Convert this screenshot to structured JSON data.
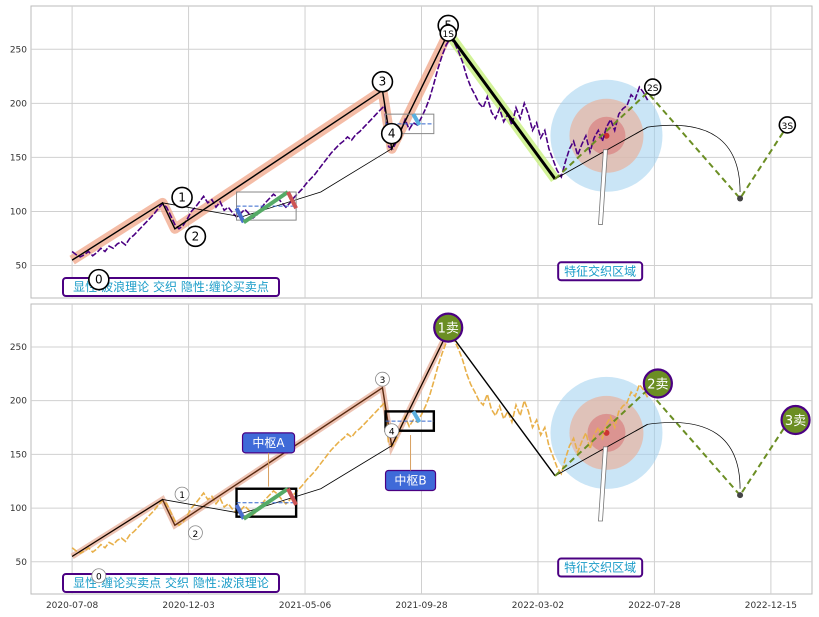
{
  "chart_data": [
    {
      "type": "line",
      "panel": "top",
      "ylim": [
        20,
        290
      ],
      "yticks": [
        50,
        100,
        150,
        200,
        250
      ],
      "x_dates": [
        "2020-07-08",
        "2020-12-03",
        "2021-05-06",
        "2021-09-28",
        "2022-03-02",
        "2022-07-28",
        "2022-12-15"
      ],
      "xlim": [
        0,
        760
      ],
      "legend_text": "显性:波浪理论 交织 隐性:缠论买卖点",
      "annotation_text": "特征交织区域",
      "wave_labels": [
        {
          "label": "0",
          "x": 66,
          "y": 37
        },
        {
          "label": "1",
          "x": 147,
          "y": 113
        },
        {
          "label": "2",
          "x": 160,
          "y": 77
        },
        {
          "label": "3",
          "x": 342,
          "y": 220
        },
        {
          "label": "4",
          "x": 351,
          "y": 172
        },
        {
          "label": "5",
          "x": 406,
          "y": 272
        },
        {
          "label": "1S",
          "x": 406,
          "y": 265
        },
        {
          "label": "2S",
          "x": 605,
          "y": 215
        },
        {
          "label": "3S",
          "x": 736,
          "y": 180
        }
      ],
      "price_path": [
        [
          40,
          63
        ],
        [
          44,
          60
        ],
        [
          48,
          58
        ],
        [
          52,
          60
        ],
        [
          56,
          63
        ],
        [
          60,
          59
        ],
        [
          64,
          62
        ],
        [
          68,
          66
        ],
        [
          72,
          63
        ],
        [
          76,
          68
        ],
        [
          80,
          66
        ],
        [
          84,
          70
        ],
        [
          88,
          72
        ],
        [
          92,
          69
        ],
        [
          96,
          75
        ],
        [
          100,
          78
        ],
        [
          104,
          82
        ],
        [
          108,
          86
        ],
        [
          112,
          90
        ],
        [
          116,
          94
        ],
        [
          120,
          98
        ],
        [
          124,
          103
        ],
        [
          128,
          107
        ],
        [
          132,
          104
        ],
        [
          136,
          96
        ],
        [
          140,
          88
        ],
        [
          144,
          84
        ],
        [
          148,
          87
        ],
        [
          152,
          93
        ],
        [
          156,
          100
        ],
        [
          160,
          104
        ],
        [
          164,
          109
        ],
        [
          168,
          114
        ],
        [
          172,
          108
        ],
        [
          176,
          111
        ],
        [
          180,
          104
        ],
        [
          184,
          109
        ],
        [
          188,
          101
        ],
        [
          192,
          104
        ],
        [
          196,
          99
        ],
        [
          200,
          95
        ],
        [
          204,
          98
        ],
        [
          208,
          102
        ],
        [
          212,
          98
        ],
        [
          216,
          94
        ],
        [
          220,
          97
        ],
        [
          224,
          103
        ],
        [
          228,
          108
        ],
        [
          232,
          112
        ],
        [
          236,
          116
        ],
        [
          240,
          113
        ],
        [
          244,
          108
        ],
        [
          248,
          104
        ],
        [
          252,
          108
        ],
        [
          256,
          113
        ],
        [
          260,
          117
        ],
        [
          264,
          121
        ],
        [
          268,
          126
        ],
        [
          272,
          130
        ],
        [
          276,
          134
        ],
        [
          280,
          139
        ],
        [
          284,
          144
        ],
        [
          288,
          149
        ],
        [
          292,
          154
        ],
        [
          296,
          158
        ],
        [
          300,
          162
        ],
        [
          304,
          165
        ],
        [
          308,
          169
        ],
        [
          312,
          166
        ],
        [
          316,
          171
        ],
        [
          320,
          174
        ],
        [
          324,
          178
        ],
        [
          328,
          182
        ],
        [
          332,
          186
        ],
        [
          336,
          190
        ],
        [
          340,
          194
        ],
        [
          344,
          198
        ],
        [
          348,
          160
        ],
        [
          352,
          158
        ],
        [
          356,
          165
        ],
        [
          360,
          175
        ],
        [
          364,
          185
        ],
        [
          368,
          176
        ],
        [
          372,
          182
        ],
        [
          376,
          180
        ],
        [
          380,
          187
        ],
        [
          384,
          195
        ],
        [
          388,
          205
        ],
        [
          392,
          218
        ],
        [
          396,
          232
        ],
        [
          400,
          244
        ],
        [
          404,
          254
        ],
        [
          408,
          260
        ],
        [
          412,
          256
        ],
        [
          416,
          248
        ],
        [
          420,
          238
        ],
        [
          424,
          225
        ],
        [
          428,
          215
        ],
        [
          432,
          208
        ],
        [
          436,
          200
        ],
        [
          440,
          196
        ],
        [
          444,
          206
        ],
        [
          448,
          192
        ],
        [
          452,
          186
        ],
        [
          456,
          195
        ],
        [
          460,
          183
        ],
        [
          464,
          190
        ],
        [
          468,
          180
        ],
        [
          472,
          196
        ],
        [
          476,
          186
        ],
        [
          480,
          200
        ],
        [
          484,
          190
        ],
        [
          488,
          175
        ],
        [
          492,
          182
        ],
        [
          496,
          168
        ],
        [
          500,
          175
        ],
        [
          504,
          158
        ],
        [
          508,
          148
        ],
        [
          512,
          138
        ],
        [
          516,
          132
        ],
        [
          520,
          146
        ],
        [
          524,
          158
        ],
        [
          528,
          165
        ],
        [
          532,
          152
        ],
        [
          536,
          162
        ],
        [
          540,
          170
        ],
        [
          544,
          155
        ],
        [
          548,
          168
        ],
        [
          552,
          175
        ],
        [
          556,
          165
        ],
        [
          560,
          178
        ],
        [
          564,
          185
        ],
        [
          568,
          175
        ],
        [
          572,
          190
        ],
        [
          576,
          195
        ],
        [
          580,
          198
        ],
        [
          584,
          208
        ],
        [
          588,
          204
        ],
        [
          592,
          215
        ],
        [
          596,
          210
        ],
        [
          600,
          203
        ]
      ],
      "wave_segments": [
        [
          [
            40,
            55
          ],
          [
            128,
            108
          ],
          [
            140,
            84
          ],
          [
            342,
            212
          ],
          [
            351,
            158
          ],
          [
            406,
            265
          ]
        ],
        [
          [
            406,
            265
          ],
          [
            510,
            130
          ]
        ]
      ],
      "projection_path": [
        [
          510,
          130
        ],
        [
          600,
          210
        ],
        [
          690,
          112
        ],
        [
          740,
          185
        ]
      ],
      "sub_wave_path": [
        [
          40,
          55
        ],
        [
          128,
          108
        ],
        [
          205,
          95
        ],
        [
          282,
          118
        ],
        [
          351,
          158
        ],
        [
          406,
          265
        ]
      ]
    },
    {
      "type": "line",
      "panel": "bottom",
      "ylim": [
        20,
        290
      ],
      "yticks": [
        50,
        100,
        150,
        200,
        250
      ],
      "x_dates": [
        "2020-07-08",
        "2020-12-03",
        "2021-05-06",
        "2021-09-28",
        "2022-03-02",
        "2022-07-28",
        "2022-12-15"
      ],
      "xlim": [
        0,
        760
      ],
      "legend_text": "显性:缠论买卖点 交织 隐性:波浪理论",
      "annotation_text": "特征交织区域",
      "zhongshu_labels": [
        "中枢A",
        "中枢B"
      ],
      "sell_labels": [
        {
          "label": "1卖",
          "x": 406,
          "y": 268
        },
        {
          "label": "2卖",
          "x": 610,
          "y": 216
        },
        {
          "label": "3卖",
          "x": 744,
          "y": 182
        }
      ],
      "wave_labels": [
        {
          "label": "0",
          "x": 66,
          "y": 37
        },
        {
          "label": "1",
          "x": 147,
          "y": 113
        },
        {
          "label": "2",
          "x": 160,
          "y": 77
        },
        {
          "label": "3",
          "x": 342,
          "y": 220
        },
        {
          "label": "4",
          "x": 351,
          "y": 172
        }
      ]
    }
  ]
}
